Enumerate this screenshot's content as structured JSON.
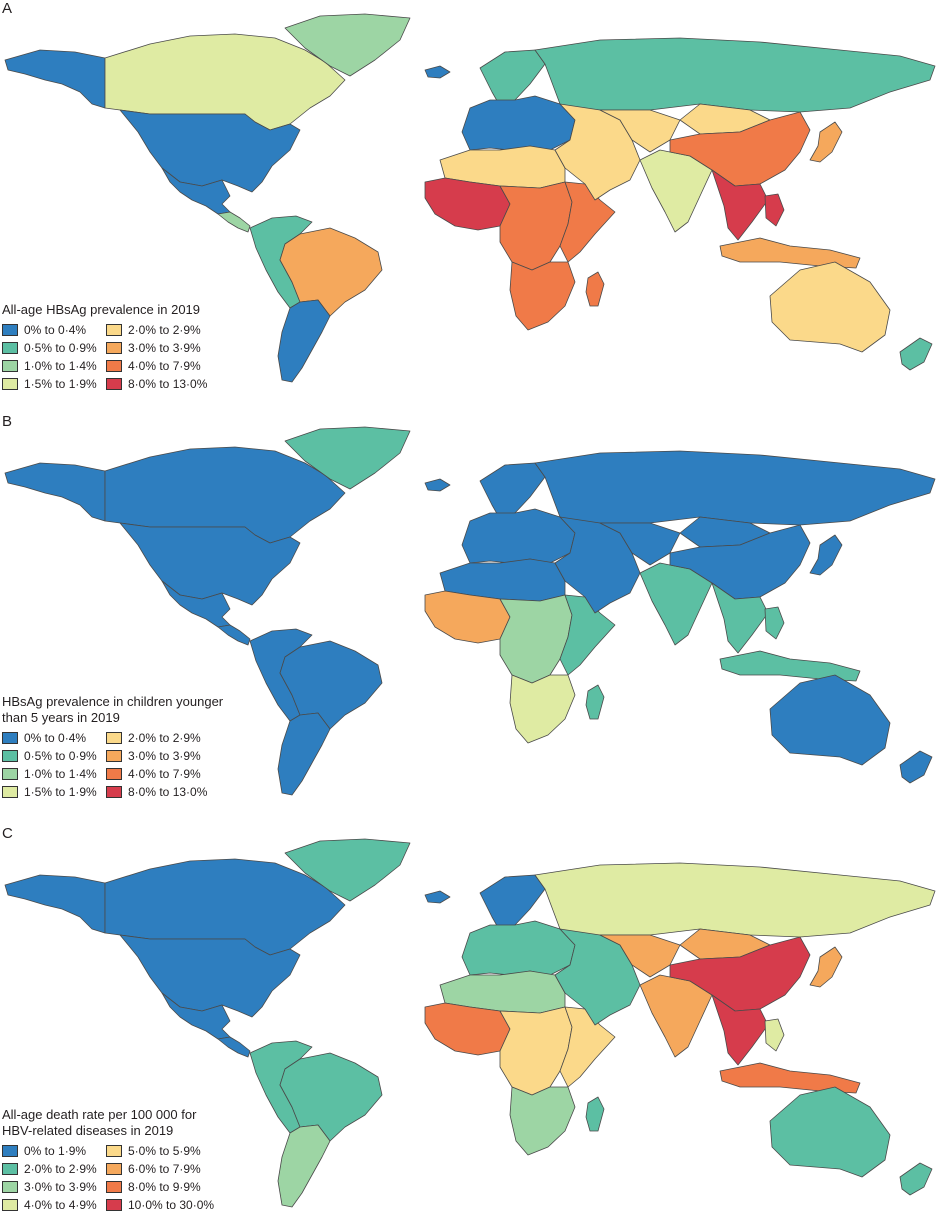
{
  "panels": [
    {
      "letter": "A",
      "title_lines": [
        "All-age HBsAg prevalence in 2019"
      ],
      "legend": [
        {
          "label": "0% to 0·4%",
          "color": "#2e7ebf"
        },
        {
          "label": "2·0% to 2·9%",
          "color": "#fbd98a"
        },
        {
          "label": "0·5% to 0·9%",
          "color": "#5cbfa3"
        },
        {
          "label": "3·0% to 3·9%",
          "color": "#f5a85c"
        },
        {
          "label": "1·0% to 1·4%",
          "color": "#9dd5a4"
        },
        {
          "label": "4·0% to 7·9%",
          "color": "#f07a48"
        },
        {
          "label": "1·5% to 1·9%",
          "color": "#dfeba3"
        },
        {
          "label": "8·0% to 13·0%",
          "color": "#d63c4c"
        }
      ],
      "regions": {
        "alaska": "#2e7ebf",
        "canada": "#dfeba3",
        "greenland": "#9dd5a4",
        "usa": "#2e7ebf",
        "mexico": "#2e7ebf",
        "central_am": "#9dd5a4",
        "andes": "#5cbfa3",
        "brazil": "#f5a85c",
        "southern_cone": "#2e7ebf",
        "europe": "#2e7ebf",
        "russia": "#5cbfa3",
        "middle_east": "#fbd98a",
        "central_asia": "#fbd98a",
        "north_africa": "#fbd98a",
        "west_africa": "#d63c4c",
        "central_africa": "#f07a48",
        "east_africa": "#f07a48",
        "southern_africa": "#f07a48",
        "madagascar": "#f07a48",
        "india": "#dfeba3",
        "china": "#f07a48",
        "mongolia": "#fbd98a",
        "se_asia": "#d63c4c",
        "japan": "#f5a85c",
        "indonesia": "#f5a85c",
        "philippines": "#d63c4c",
        "australia": "#fbd98a",
        "new_zealand": "#5cbfa3",
        "scandinavia": "#5cbfa3",
        "iceland": "#2e7ebf"
      }
    },
    {
      "letter": "B",
      "title_lines": [
        "HBsAg prevalence in children younger",
        "than 5 years in 2019"
      ],
      "legend": [
        {
          "label": "0% to 0·4%",
          "color": "#2e7ebf"
        },
        {
          "label": "2·0% to 2·9%",
          "color": "#fbd98a"
        },
        {
          "label": "0·5% to 0·9%",
          "color": "#5cbfa3"
        },
        {
          "label": "3·0% to 3·9%",
          "color": "#f5a85c"
        },
        {
          "label": "1·0% to 1·4%",
          "color": "#9dd5a4"
        },
        {
          "label": "4·0% to 7·9%",
          "color": "#f07a48"
        },
        {
          "label": "1·5% to 1·9%",
          "color": "#dfeba3"
        },
        {
          "label": "8·0% to 13·0%",
          "color": "#d63c4c"
        }
      ],
      "regions": {
        "alaska": "#2e7ebf",
        "canada": "#2e7ebf",
        "greenland": "#5cbfa3",
        "usa": "#2e7ebf",
        "mexico": "#2e7ebf",
        "central_am": "#2e7ebf",
        "andes": "#2e7ebf",
        "brazil": "#2e7ebf",
        "southern_cone": "#2e7ebf",
        "europe": "#2e7ebf",
        "russia": "#2e7ebf",
        "middle_east": "#2e7ebf",
        "central_asia": "#2e7ebf",
        "north_africa": "#2e7ebf",
        "west_africa": "#f5a85c",
        "central_africa": "#9dd5a4",
        "east_africa": "#5cbfa3",
        "southern_africa": "#dfeba3",
        "madagascar": "#5cbfa3",
        "india": "#5cbfa3",
        "china": "#2e7ebf",
        "mongolia": "#2e7ebf",
        "se_asia": "#5cbfa3",
        "japan": "#2e7ebf",
        "indonesia": "#5cbfa3",
        "philippines": "#5cbfa3",
        "australia": "#2e7ebf",
        "new_zealand": "#2e7ebf",
        "scandinavia": "#2e7ebf",
        "iceland": "#2e7ebf"
      }
    },
    {
      "letter": "C",
      "title_lines": [
        "All-age death rate per 100 000 for",
        "HBV-related diseases in 2019"
      ],
      "legend": [
        {
          "label": "0% to 1·9%",
          "color": "#2e7ebf"
        },
        {
          "label": "5·0% to 5·9%",
          "color": "#fbd98a"
        },
        {
          "label": "2·0% to 2·9%",
          "color": "#5cbfa3"
        },
        {
          "label": "6·0% to 7·9%",
          "color": "#f5a85c"
        },
        {
          "label": "3·0% to 3·9%",
          "color": "#9dd5a4"
        },
        {
          "label": "8·0% to 9·9%",
          "color": "#f07a48"
        },
        {
          "label": "4·0% to 4·9%",
          "color": "#dfeba3"
        },
        {
          "label": "10·0% to 30·0%",
          "color": "#d63c4c"
        }
      ],
      "regions": {
        "alaska": "#2e7ebf",
        "canada": "#2e7ebf",
        "greenland": "#5cbfa3",
        "usa": "#2e7ebf",
        "mexico": "#2e7ebf",
        "central_am": "#2e7ebf",
        "andes": "#5cbfa3",
        "brazil": "#5cbfa3",
        "southern_cone": "#9dd5a4",
        "europe": "#5cbfa3",
        "russia": "#dfeba3",
        "middle_east": "#5cbfa3",
        "central_asia": "#f5a85c",
        "north_africa": "#9dd5a4",
        "west_africa": "#f07a48",
        "central_africa": "#fbd98a",
        "east_africa": "#fbd98a",
        "southern_africa": "#9dd5a4",
        "madagascar": "#5cbfa3",
        "india": "#f5a85c",
        "china": "#d63c4c",
        "mongolia": "#f5a85c",
        "se_asia": "#d63c4c",
        "japan": "#f5a85c",
        "indonesia": "#f07a48",
        "philippines": "#dfeba3",
        "australia": "#5cbfa3",
        "new_zealand": "#5cbfa3",
        "scandinavia": "#2e7ebf",
        "iceland": "#2e7ebf"
      }
    }
  ]
}
